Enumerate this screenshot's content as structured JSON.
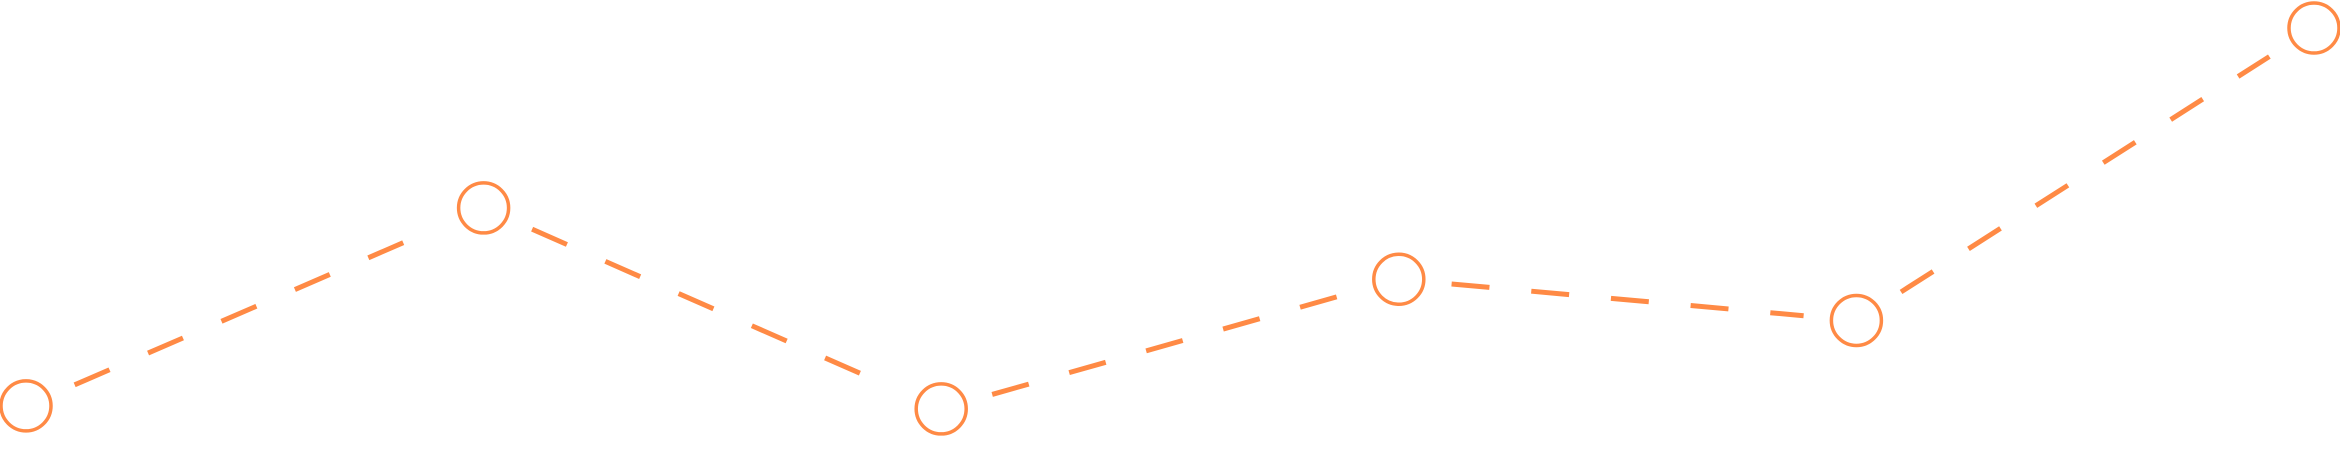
{
  "chart_data": {
    "type": "line",
    "x": [
      1,
      2,
      3,
      4,
      5,
      6
    ],
    "series": [
      {
        "values": [
          22,
          219,
          19,
          148,
          107,
          398
        ]
      }
    ],
    "ylim": [
      0,
      400
    ],
    "grid": false,
    "axes_visible": false,
    "line_style": "dashed",
    "markers": "hollow-circle",
    "colors": {
      "line": "#ff8a45",
      "marker_fill": "#ffffff",
      "background": "#ffffff"
    }
  }
}
